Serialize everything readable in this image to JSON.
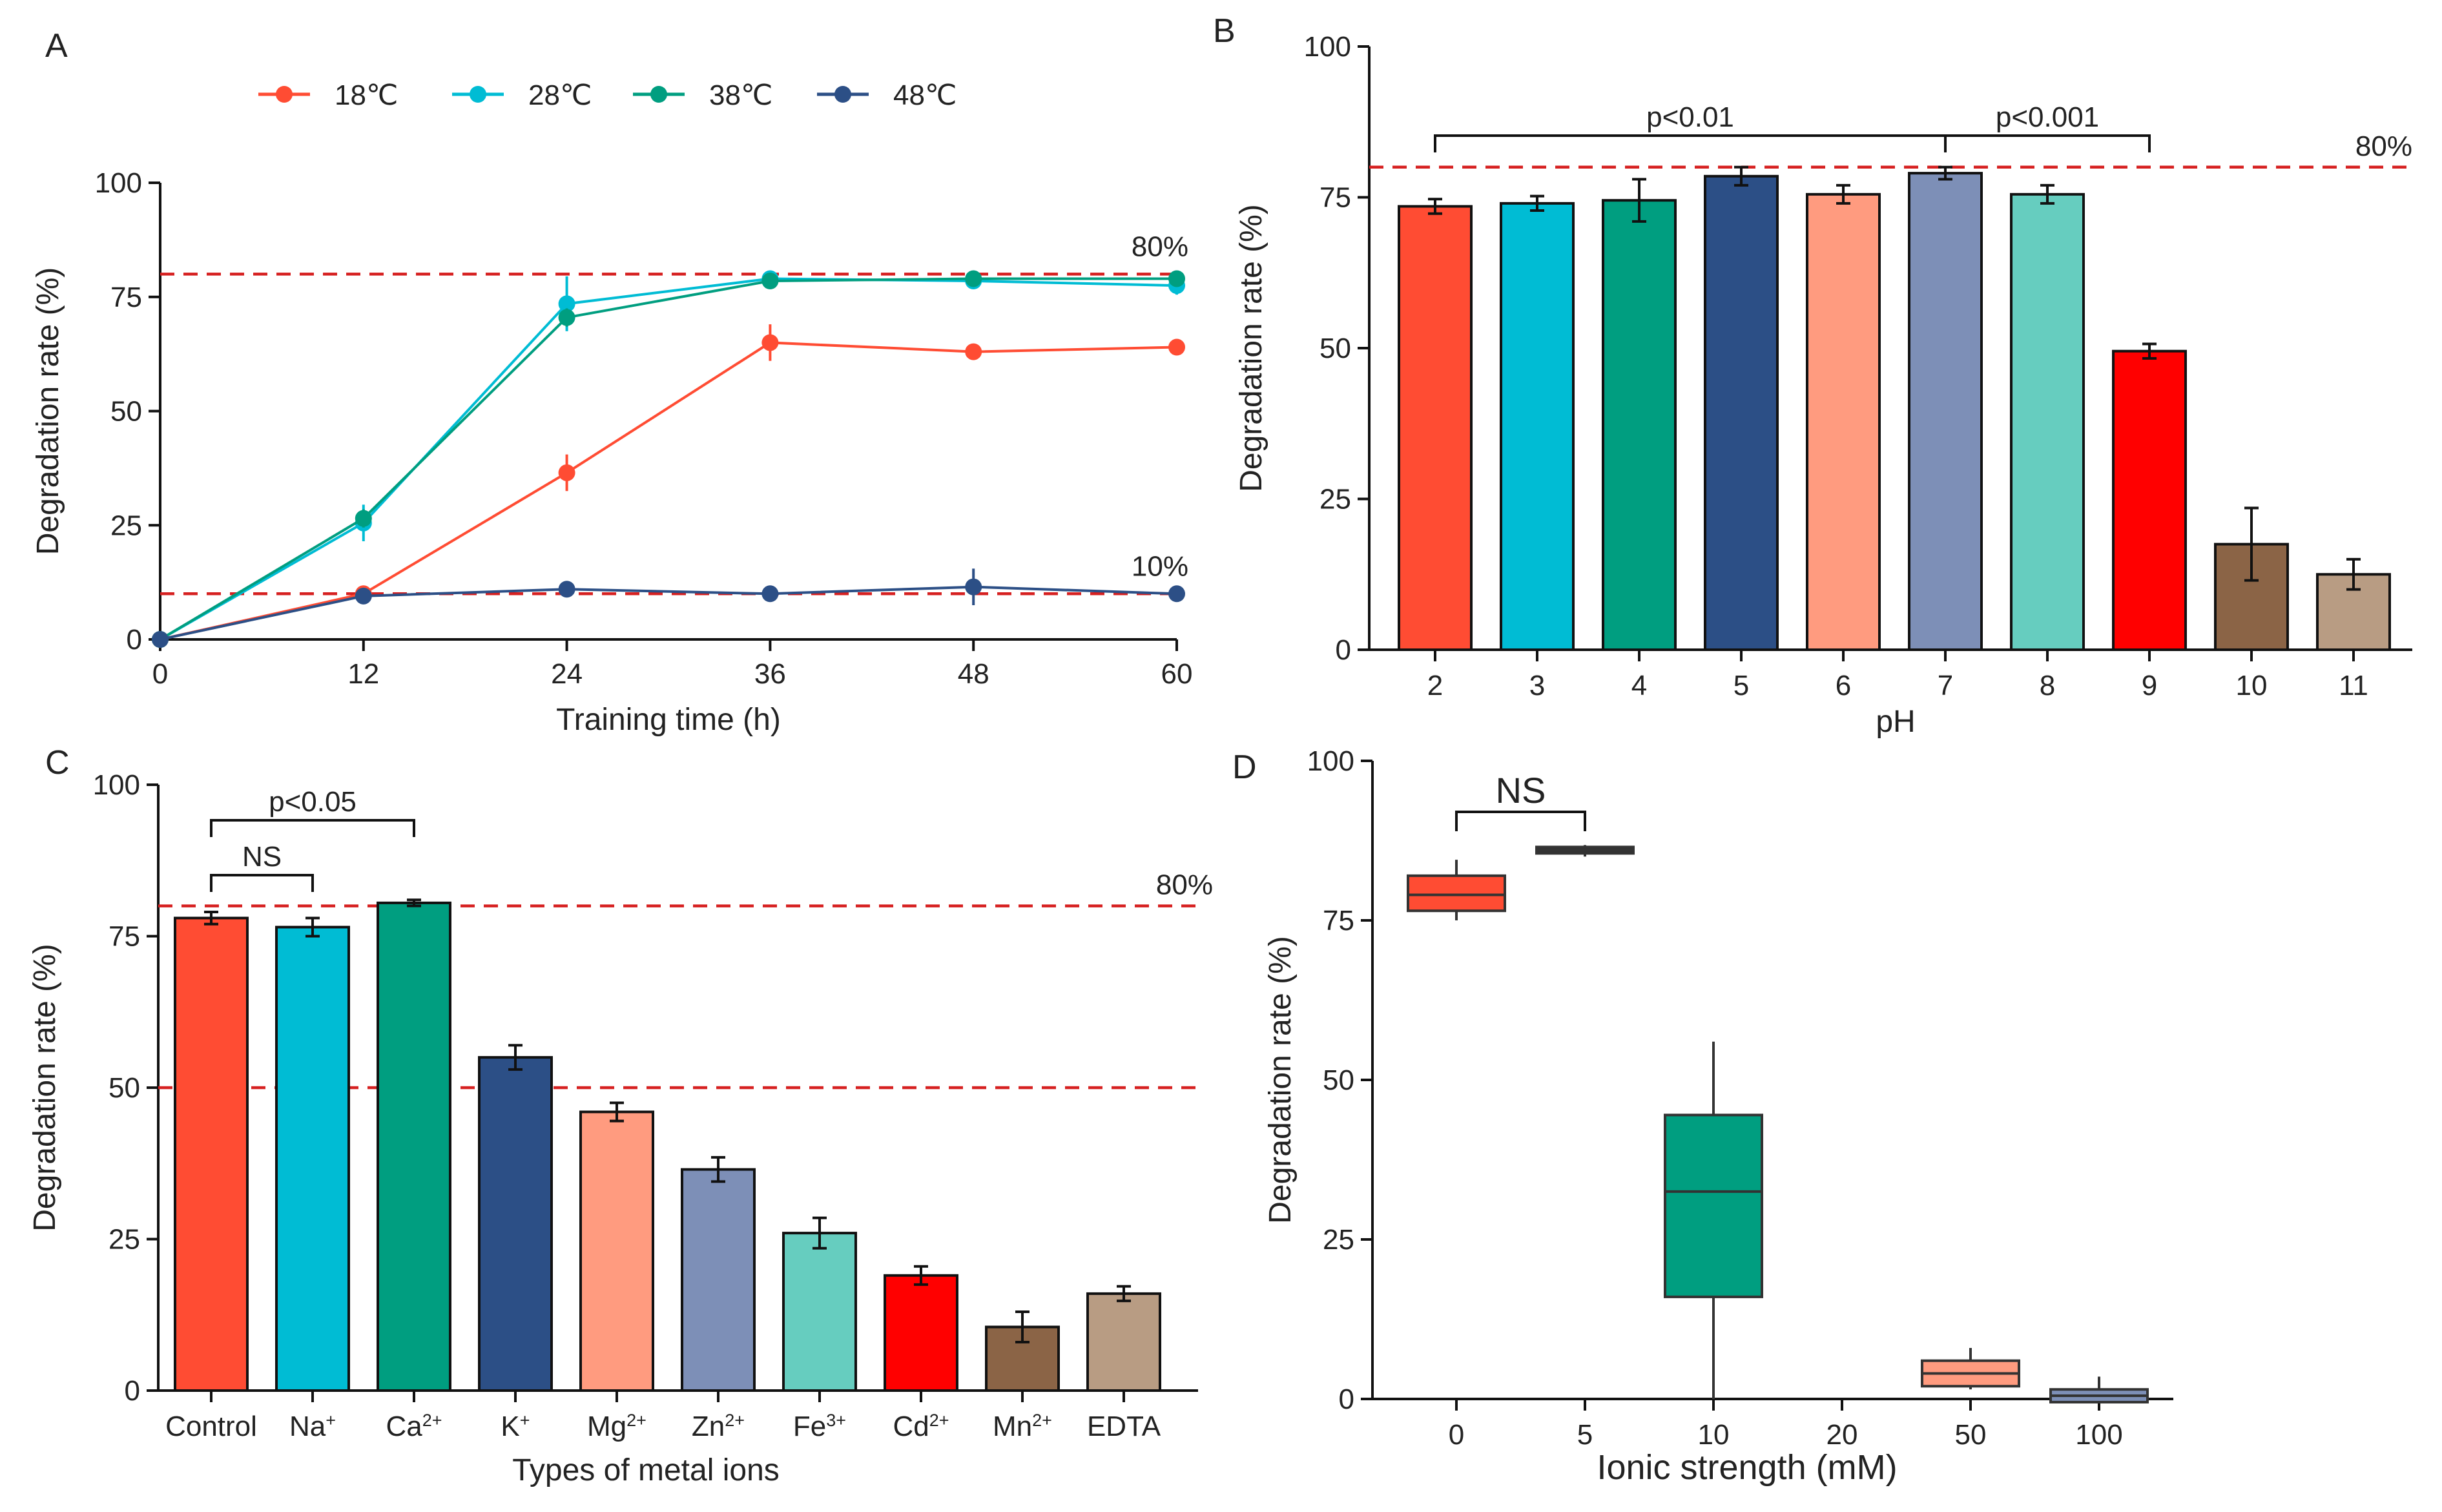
{
  "colors": {
    "red": "#FF4C33",
    "cyan": "#00BCD4",
    "teal": "#009E80",
    "navy": "#2C4F86",
    "salmon": "#FF9B7F",
    "steel": "#7D8FB7",
    "mint": "#66CDBF",
    "bright_red": "#FF0000",
    "brown": "#8B6446",
    "tan": "#B89C83",
    "refline": "#D62020",
    "dark": "#333333"
  },
  "chart_data": [
    {
      "panel": "A",
      "type": "line",
      "title": "",
      "xlabel": "Training time (h)",
      "ylabel": "Degradation rate (%)",
      "xlim": [
        0,
        60
      ],
      "ylim": [
        0,
        100
      ],
      "xticks": [
        "0",
        "12",
        "24",
        "36",
        "48",
        "60"
      ],
      "yticks": [
        "0",
        "25",
        "50",
        "75",
        "100"
      ],
      "x": [
        0,
        12,
        24,
        36,
        48,
        60
      ],
      "series": [
        {
          "name": "18℃",
          "color": "red",
          "values": [
            0,
            10,
            36.5,
            65,
            63,
            64
          ],
          "err": [
            0,
            1,
            4,
            4,
            1.5,
            1
          ]
        },
        {
          "name": "28℃",
          "color": "cyan",
          "values": [
            0,
            25.5,
            73.5,
            79,
            78.5,
            77.5
          ],
          "err": [
            0,
            4,
            6,
            1,
            1.5,
            2
          ]
        },
        {
          "name": "38℃",
          "color": "teal",
          "values": [
            0,
            26.5,
            70.5,
            78.5,
            79,
            79
          ],
          "err": [
            0,
            2,
            2,
            1,
            1.5,
            1
          ]
        },
        {
          "name": "48℃",
          "color": "navy",
          "values": [
            0,
            9.5,
            11,
            10,
            11.5,
            10
          ],
          "err": [
            0,
            1.5,
            1,
            1,
            4,
            1
          ]
        }
      ],
      "reference_lines": [
        {
          "y": 80,
          "label": "80%"
        },
        {
          "y": 10,
          "label": "10%"
        }
      ]
    },
    {
      "panel": "B",
      "type": "bar",
      "title": "",
      "xlabel": "pH",
      "ylabel": "Degradation rate (%)",
      "ylim": [
        0,
        100
      ],
      "yticks": [
        "0",
        "25",
        "50",
        "75",
        "100"
      ],
      "categories": [
        "2",
        "3",
        "4",
        "5",
        "6",
        "7",
        "8",
        "9",
        "10",
        "11"
      ],
      "values": [
        73.5,
        74,
        74.5,
        78.5,
        75.5,
        79,
        75.5,
        49.5,
        17.5,
        12.5
      ],
      "err": [
        1.2,
        1.2,
        3.5,
        1.5,
        1.5,
        1,
        1.5,
        1.2,
        6,
        2.5
      ],
      "bar_colors": [
        "red",
        "cyan",
        "teal",
        "navy",
        "salmon",
        "steel",
        "mint",
        "bright_red",
        "brown",
        "tan"
      ],
      "reference_lines": [
        {
          "y": 80,
          "label": "80%"
        }
      ],
      "brackets": [
        {
          "from": 0,
          "to": 5,
          "label": "p<0.01"
        },
        {
          "from": 5,
          "to": 7,
          "label": "p<0.001"
        }
      ]
    },
    {
      "panel": "C",
      "type": "bar",
      "title": "",
      "xlabel": "Types of metal ions",
      "ylabel": "Degradation rate (%)",
      "ylim": [
        0,
        100
      ],
      "yticks": [
        "0",
        "25",
        "50",
        "75",
        "100"
      ],
      "categories": [
        {
          "base": "Control",
          "sup": ""
        },
        {
          "base": "Na",
          "sup": "+"
        },
        {
          "base": "Ca",
          "sup": "2+"
        },
        {
          "base": "K",
          "sup": "+"
        },
        {
          "base": "Mg",
          "sup": "2+"
        },
        {
          "base": "Zn",
          "sup": "2+"
        },
        {
          "base": "Fe",
          "sup": "3+"
        },
        {
          "base": "Cd",
          "sup": "2+"
        },
        {
          "base": "Mn",
          "sup": "2+"
        },
        {
          "base": "EDTA",
          "sup": ""
        }
      ],
      "values": [
        78,
        76.5,
        80.5,
        55,
        46,
        36.5,
        26,
        19,
        10.5,
        16
      ],
      "err": [
        1,
        1.5,
        0.5,
        2,
        1.5,
        2,
        2.5,
        1.5,
        2.5,
        1.2
      ],
      "bar_colors": [
        "red",
        "cyan",
        "teal",
        "navy",
        "salmon",
        "steel",
        "mint",
        "bright_red",
        "brown",
        "tan"
      ],
      "reference_lines": [
        {
          "y": 80,
          "label": "80%"
        },
        {
          "y": 50,
          "label": ""
        }
      ],
      "brackets": [
        {
          "from": 0,
          "to": 1,
          "label": "NS"
        },
        {
          "from": 0,
          "to": 2,
          "label": "p<0.05"
        }
      ]
    },
    {
      "panel": "D",
      "type": "box",
      "title": "",
      "xlabel": "Ionic strength (mM)",
      "ylabel": "Degradation rate (%)",
      "ylim": [
        0,
        100
      ],
      "yticks": [
        "0",
        "25",
        "50",
        "75",
        "100"
      ],
      "categories": [
        "0",
        "5",
        "10",
        "20",
        "50",
        "100"
      ],
      "boxes": [
        {
          "category": "0",
          "min": 75,
          "q1": 76.5,
          "median": 79,
          "q3": 82,
          "max": 84.5,
          "color": "red"
        },
        {
          "category": "5",
          "min": 85,
          "q1": 85.5,
          "median": 86,
          "q3": 86.5,
          "max": 86.8,
          "color": "dark"
        },
        {
          "category": "10",
          "min": 0,
          "q1": 16,
          "median": 32.5,
          "q3": 44.5,
          "max": 56,
          "color": "teal"
        },
        {
          "category": "50",
          "min": 1.5,
          "q1": 2,
          "median": 4,
          "q3": 6,
          "max": 8,
          "color": "salmon"
        },
        {
          "category": "100",
          "min": -0.5,
          "q1": -0.5,
          "median": 0.5,
          "q3": 1.5,
          "max": 3.5,
          "color": "steel"
        }
      ],
      "brackets": [
        {
          "from": 0,
          "to": 1,
          "label": "NS"
        }
      ]
    }
  ],
  "panels": {
    "a": {
      "letter": "A"
    },
    "b": {
      "letter": "B"
    },
    "c": {
      "letter": "C"
    },
    "d": {
      "letter": "D"
    }
  }
}
